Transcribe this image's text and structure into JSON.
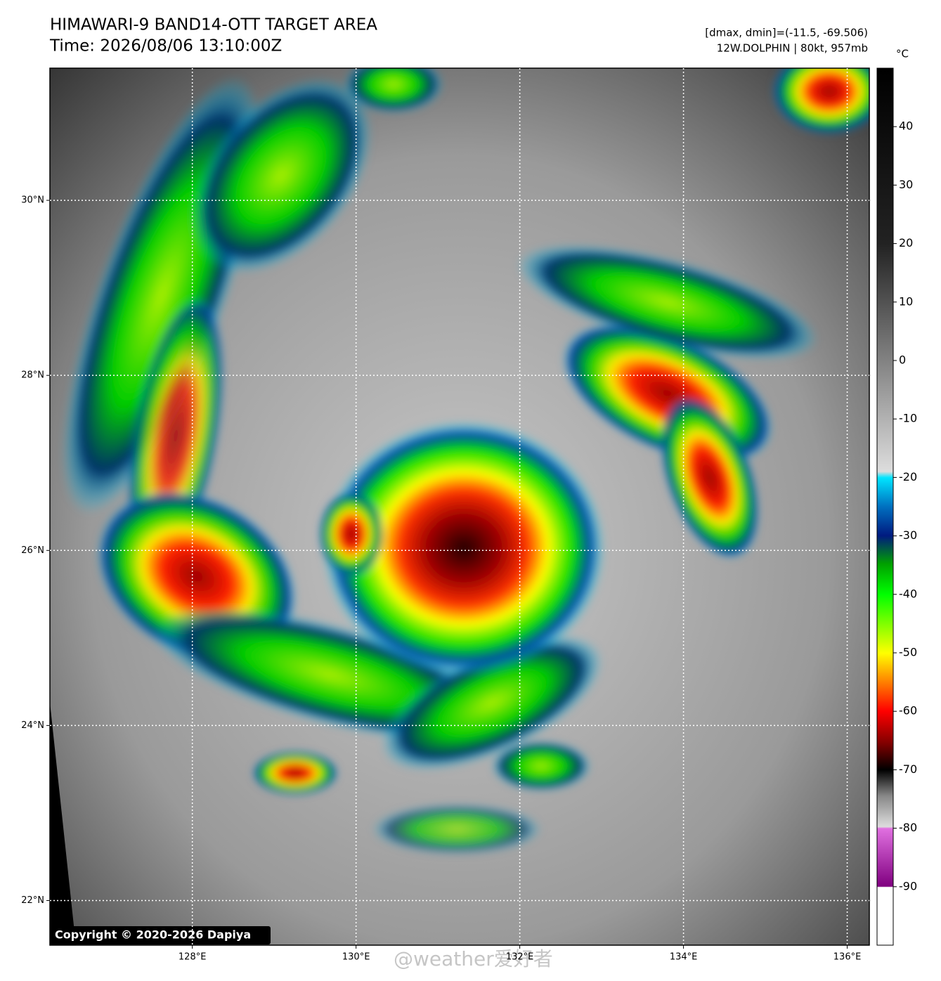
{
  "header": {
    "title": "HIMAWARI-9 BAND14-OTT TARGET AREA",
    "time": "Time: 2026/08/06 13:10:00Z",
    "range": "[dmax, dmin]=(-11.5, -69.506)",
    "storm": "12W.DOLPHIN | 80kt, 957mb"
  },
  "map": {
    "xlim": [
      126.26,
      136.27
    ],
    "ylim": [
      21.49,
      31.51
    ],
    "xticks": [
      {
        "value": 128,
        "label": "128°E"
      },
      {
        "value": 130,
        "label": "130°E"
      },
      {
        "value": 132,
        "label": "132°E"
      },
      {
        "value": 134,
        "label": "134°E"
      },
      {
        "value": 136,
        "label": "136°E"
      }
    ],
    "yticks": [
      {
        "value": 22,
        "label": "22°N"
      },
      {
        "value": 24,
        "label": "24°N"
      },
      {
        "value": 26,
        "label": "26°N"
      },
      {
        "value": 28,
        "label": "28°N"
      },
      {
        "value": 30,
        "label": "30°N"
      }
    ],
    "grid": true,
    "copyright": "Copyright © 2020-2026 Dapiya"
  },
  "colorbar": {
    "unit": "°C",
    "clim": [
      -100,
      50
    ],
    "ticks": [
      40,
      30,
      20,
      10,
      0,
      -10,
      -20,
      -30,
      -40,
      -50,
      -60,
      -70,
      -80,
      -90
    ]
  },
  "watermark": "@weather爱好者"
}
